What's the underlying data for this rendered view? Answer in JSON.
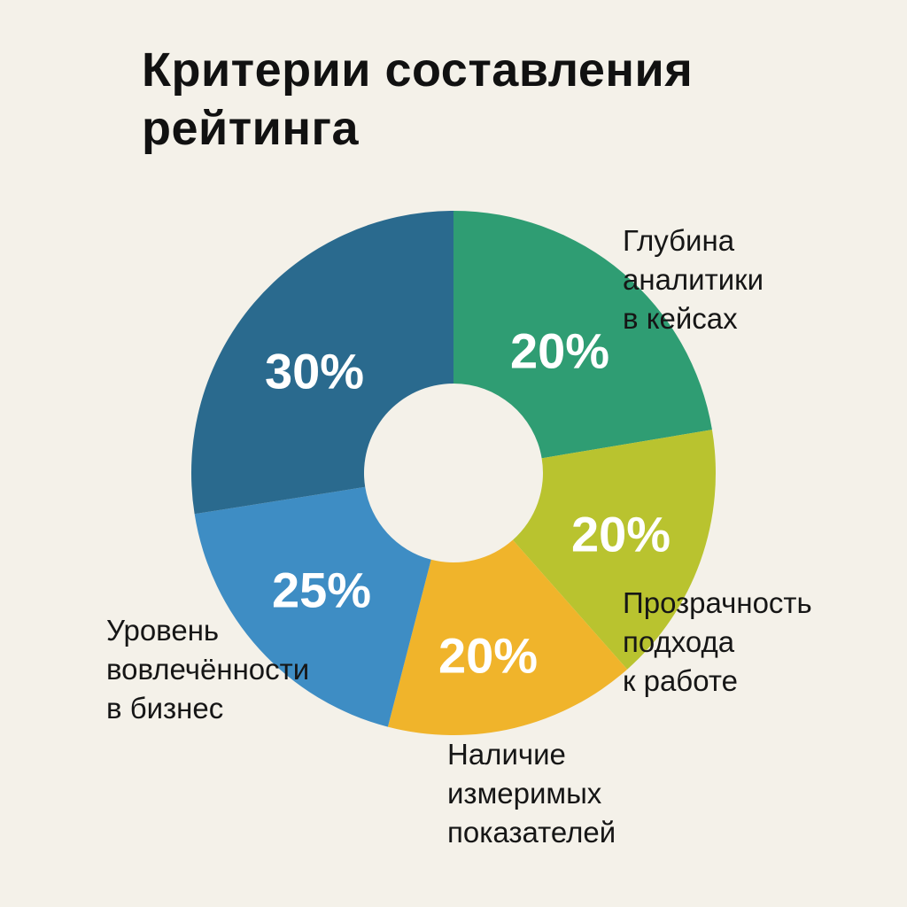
{
  "page": {
    "background_color": "#f4f1e9"
  },
  "title": {
    "text": "Критерии составления\nрейтинга",
    "color": "#111111"
  },
  "chart_data": {
    "type": "pie",
    "subtype": "donut",
    "title": "Критерии составления рейтинга",
    "unit": "%",
    "legend_position": "labels-around-chart",
    "hole_color": "#f4f1e9",
    "percent_label_color": "#ffffff",
    "category_label_color": "#161616",
    "categories": [
      "Глубина аналитики в кейсах",
      "Прозрачность подхода к работе",
      "Наличие измеримых показателей",
      "Уровень вовлечённости в бизнес",
      ""
    ],
    "values": [
      20,
      20,
      20,
      25,
      30
    ],
    "segments": [
      {
        "pct_text": "20%",
        "value": 20,
        "color": "#2f9d73",
        "label": "Глубина\nаналитики\nв кейсах",
        "drawn_start_deg": 0,
        "drawn_end_deg": 80.5
      },
      {
        "pct_text": "20%",
        "value": 20,
        "color": "#b9c32f",
        "label": "Прозрачность\nподхода\nк работе",
        "drawn_start_deg": 80.5,
        "drawn_end_deg": 138.5
      },
      {
        "pct_text": "20%",
        "value": 20,
        "color": "#f0b42b",
        "label": "Наличие\nизмеримых\nпоказателей",
        "drawn_start_deg": 138.5,
        "drawn_end_deg": 194.5
      },
      {
        "pct_text": "25%",
        "value": 25,
        "color": "#3e8dc4",
        "label": "Уровень\nвовлечённости\nв бизнес",
        "drawn_start_deg": 194.5,
        "drawn_end_deg": 261
      },
      {
        "pct_text": "30%",
        "value": 30,
        "color": "#2a6a8e",
        "label": "",
        "drawn_start_deg": 261,
        "drawn_end_deg": 360
      }
    ]
  }
}
